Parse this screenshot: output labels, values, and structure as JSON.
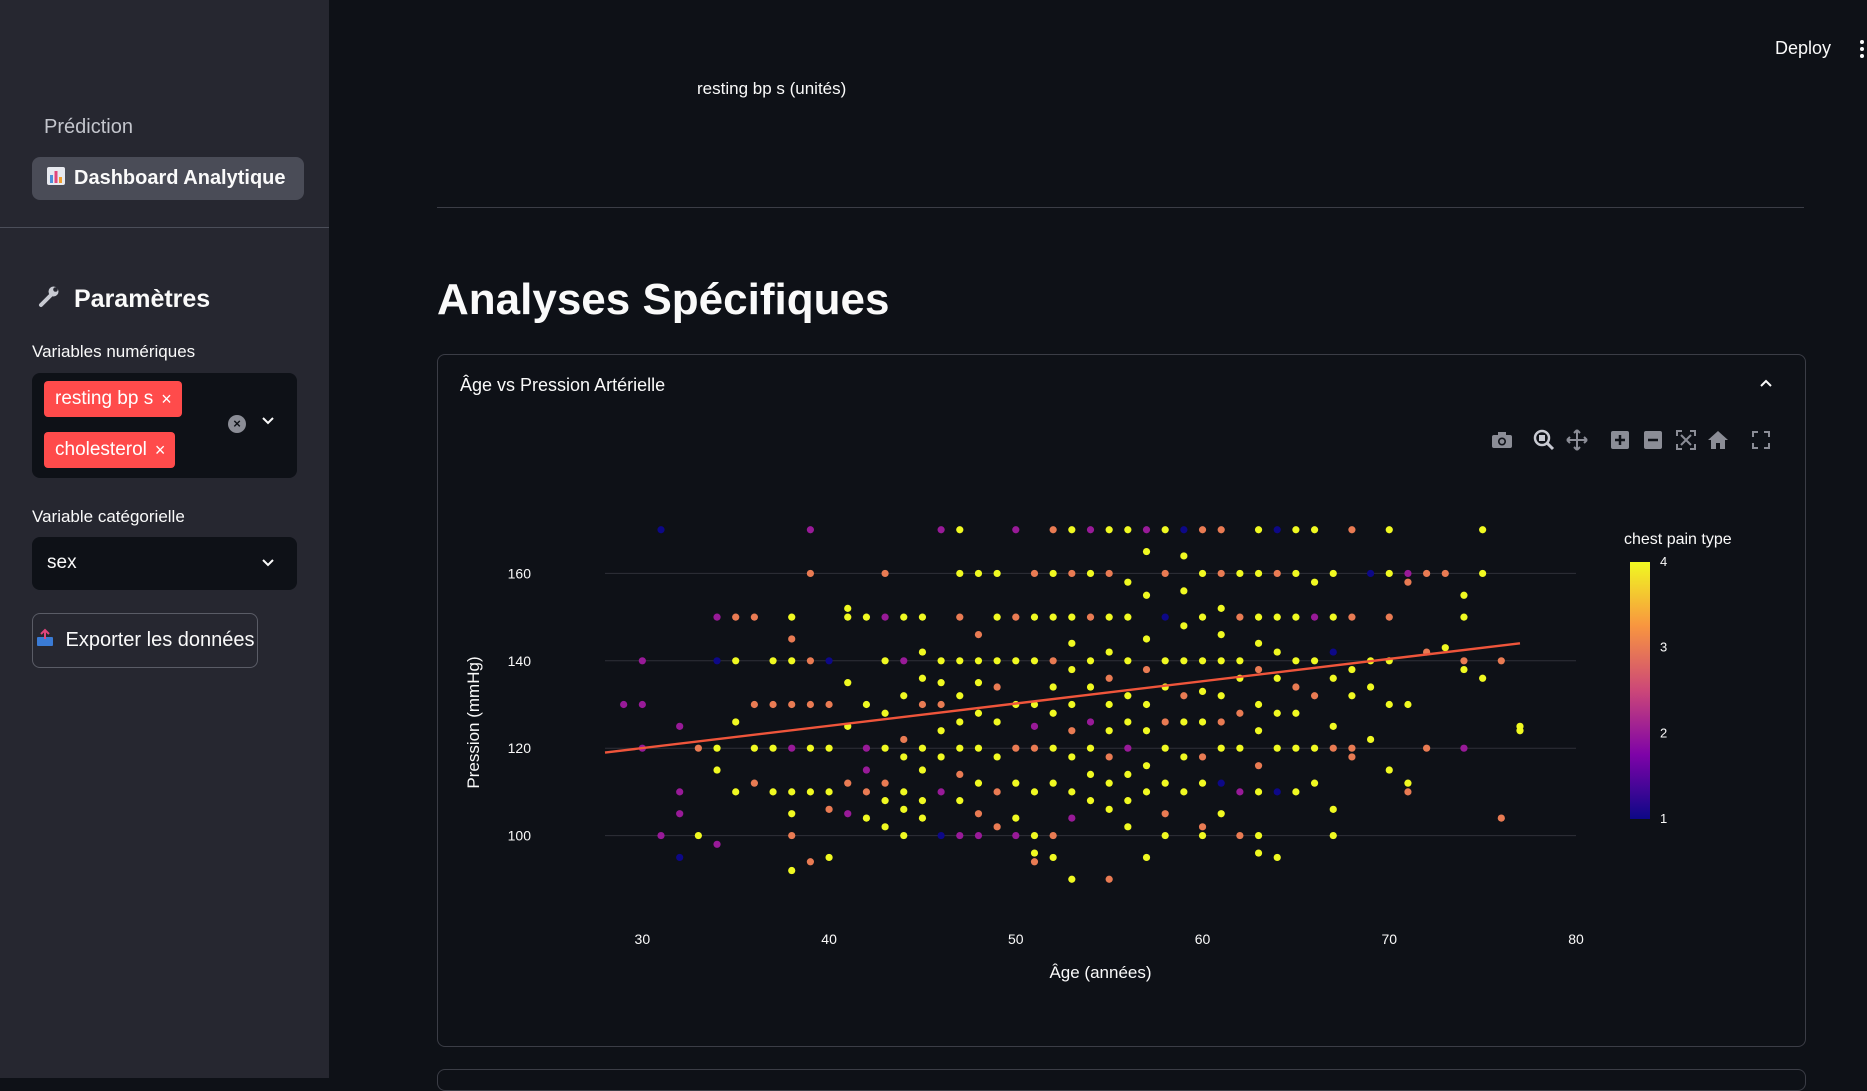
{
  "sidebar": {
    "nav_header": "Prédiction",
    "nav_active": "Dashboard Analytique",
    "params_title": "Paramètres",
    "numeric_label": "Variables numériques",
    "numeric_tags": [
      "resting bp s",
      "cholesterol"
    ],
    "categorical_label": "Variable catégorielle",
    "categorical_value": "sex",
    "export_label": "Exporter les données"
  },
  "header": {
    "deploy_label": "Deploy"
  },
  "metric": {
    "label": "resting bp s (unités)"
  },
  "section": {
    "title": "Analyses Spécifiques"
  },
  "expander": {
    "title": "Âge vs Pression Artérielle"
  },
  "modebar_icons": [
    "camera-icon",
    "zoom-icon",
    "pan-icon",
    "zoom-in-icon",
    "zoom-out-icon",
    "autoscale-icon",
    "reset-axes-icon",
    "fullscreen-icon"
  ],
  "chart_data": {
    "type": "scatter",
    "xlabel": "Âge (années)",
    "ylabel": "Pression (mmHg)",
    "xlim": [
      28,
      80
    ],
    "ylim": [
      88,
      172
    ],
    "xticks": [
      30,
      40,
      50,
      60,
      70,
      80
    ],
    "yticks": [
      100,
      120,
      140,
      160
    ],
    "grid": true,
    "colorbar": {
      "title": "chest pain type",
      "ticks": [
        1,
        2,
        3,
        4
      ],
      "range": [
        1,
        4
      ],
      "colors": [
        "#0d0887",
        "#7e03a8",
        "#cc4778",
        "#f89540",
        "#f0f921"
      ]
    },
    "trendline": {
      "color": "#ef553b",
      "points": [
        [
          28,
          119
        ],
        [
          77,
          144
        ]
      ]
    },
    "points": [
      [
        29,
        130,
        2
      ],
      [
        30,
        130,
        2
      ],
      [
        30,
        140,
        2
      ],
      [
        30,
        120,
        2
      ],
      [
        31,
        170,
        1
      ],
      [
        32,
        125,
        2
      ],
      [
        32,
        110,
        2
      ],
      [
        32,
        105,
        2
      ],
      [
        32,
        95,
        1
      ],
      [
        31,
        100,
        2
      ],
      [
        33,
        100,
        4
      ],
      [
        33,
        120,
        3
      ],
      [
        34,
        150,
        2
      ],
      [
        34,
        140,
        1
      ],
      [
        34,
        120,
        4
      ],
      [
        34,
        115,
        4
      ],
      [
        34,
        98,
        2
      ],
      [
        35,
        150,
        3
      ],
      [
        35,
        110,
        4
      ],
      [
        35,
        126,
        4
      ],
      [
        35,
        140,
        4
      ],
      [
        36,
        150,
        3
      ],
      [
        36,
        130,
        3
      ],
      [
        36,
        120,
        4
      ],
      [
        36,
        112,
        3
      ],
      [
        37,
        140,
        4
      ],
      [
        37,
        130,
        3
      ],
      [
        37,
        120,
        4
      ],
      [
        37,
        110,
        4
      ],
      [
        38,
        150,
        4
      ],
      [
        38,
        145,
        3
      ],
      [
        38,
        140,
        4
      ],
      [
        38,
        130,
        3
      ],
      [
        38,
        120,
        2
      ],
      [
        38,
        110,
        4
      ],
      [
        38,
        105,
        4
      ],
      [
        38,
        100,
        3
      ],
      [
        38,
        92,
        4
      ],
      [
        39,
        170,
        2
      ],
      [
        39,
        160,
        3
      ],
      [
        39,
        140,
        3
      ],
      [
        39,
        130,
        3
      ],
      [
        39,
        120,
        4
      ],
      [
        39,
        110,
        4
      ],
      [
        39,
        94,
        3
      ],
      [
        40,
        140,
        1
      ],
      [
        40,
        130,
        3
      ],
      [
        40,
        120,
        4
      ],
      [
        40,
        110,
        4
      ],
      [
        40,
        106,
        3
      ],
      [
        40,
        95,
        4
      ],
      [
        41,
        150,
        4
      ],
      [
        41,
        152,
        4
      ],
      [
        41,
        135,
        4
      ],
      [
        41,
        125,
        4
      ],
      [
        41,
        112,
        3
      ],
      [
        41,
        105,
        2
      ],
      [
        42,
        150,
        4
      ],
      [
        42,
        130,
        4
      ],
      [
        42,
        120,
        2
      ],
      [
        42,
        110,
        3
      ],
      [
        42,
        104,
        4
      ],
      [
        42,
        115,
        2
      ],
      [
        43,
        160,
        3
      ],
      [
        43,
        150,
        2
      ],
      [
        43,
        140,
        4
      ],
      [
        43,
        128,
        4
      ],
      [
        43,
        120,
        4
      ],
      [
        43,
        112,
        3
      ],
      [
        43,
        108,
        4
      ],
      [
        43,
        102,
        4
      ],
      [
        44,
        150,
        4
      ],
      [
        44,
        140,
        2
      ],
      [
        44,
        132,
        4
      ],
      [
        44,
        122,
        3
      ],
      [
        44,
        118,
        4
      ],
      [
        44,
        110,
        4
      ],
      [
        44,
        106,
        4
      ],
      [
        44,
        100,
        4
      ],
      [
        45,
        150,
        4
      ],
      [
        45,
        142,
        4
      ],
      [
        45,
        136,
        4
      ],
      [
        45,
        130,
        3
      ],
      [
        45,
        120,
        4
      ],
      [
        45,
        115,
        4
      ],
      [
        45,
        108,
        4
      ],
      [
        45,
        104,
        4
      ],
      [
        46,
        170,
        2
      ],
      [
        46,
        140,
        4
      ],
      [
        46,
        135,
        4
      ],
      [
        46,
        130,
        3
      ],
      [
        46,
        124,
        4
      ],
      [
        46,
        118,
        4
      ],
      [
        46,
        110,
        2
      ],
      [
        46,
        100,
        1
      ],
      [
        47,
        170,
        4
      ],
      [
        47,
        160,
        4
      ],
      [
        47,
        150,
        3
      ],
      [
        47,
        140,
        4
      ],
      [
        47,
        132,
        4
      ],
      [
        47,
        126,
        4
      ],
      [
        47,
        120,
        4
      ],
      [
        47,
        114,
        3
      ],
      [
        47,
        108,
        4
      ],
      [
        47,
        100,
        2
      ],
      [
        48,
        160,
        4
      ],
      [
        48,
        146,
        3
      ],
      [
        48,
        140,
        4
      ],
      [
        48,
        135,
        4
      ],
      [
        48,
        128,
        4
      ],
      [
        48,
        120,
        4
      ],
      [
        48,
        112,
        4
      ],
      [
        48,
        105,
        3
      ],
      [
        48,
        100,
        2
      ],
      [
        49,
        160,
        4
      ],
      [
        49,
        150,
        4
      ],
      [
        49,
        140,
        4
      ],
      [
        49,
        134,
        3
      ],
      [
        49,
        126,
        4
      ],
      [
        49,
        118,
        4
      ],
      [
        49,
        110,
        3
      ],
      [
        49,
        102,
        3
      ],
      [
        50,
        170,
        2
      ],
      [
        50,
        150,
        3
      ],
      [
        50,
        140,
        4
      ],
      [
        50,
        130,
        4
      ],
      [
        50,
        120,
        3
      ],
      [
        50,
        112,
        4
      ],
      [
        50,
        104,
        4
      ],
      [
        50,
        100,
        2
      ],
      [
        51,
        160,
        3
      ],
      [
        51,
        150,
        4
      ],
      [
        51,
        140,
        4
      ],
      [
        51,
        130,
        4
      ],
      [
        51,
        125,
        2
      ],
      [
        51,
        120,
        3
      ],
      [
        51,
        110,
        4
      ],
      [
        51,
        100,
        4
      ],
      [
        51,
        94,
        3
      ],
      [
        51,
        96,
        4
      ],
      [
        52,
        170,
        3
      ],
      [
        52,
        160,
        4
      ],
      [
        52,
        150,
        4
      ],
      [
        52,
        140,
        3
      ],
      [
        52,
        134,
        4
      ],
      [
        52,
        128,
        4
      ],
      [
        52,
        120,
        4
      ],
      [
        52,
        112,
        4
      ],
      [
        52,
        100,
        3
      ],
      [
        52,
        95,
        4
      ],
      [
        53,
        170,
        4
      ],
      [
        53,
        160,
        3
      ],
      [
        53,
        150,
        4
      ],
      [
        53,
        144,
        4
      ],
      [
        53,
        138,
        4
      ],
      [
        53,
        130,
        4
      ],
      [
        53,
        124,
        3
      ],
      [
        53,
        118,
        4
      ],
      [
        53,
        110,
        4
      ],
      [
        53,
        104,
        2
      ],
      [
        53,
        90,
        4
      ],
      [
        54,
        170,
        2
      ],
      [
        54,
        160,
        4
      ],
      [
        54,
        150,
        3
      ],
      [
        54,
        140,
        4
      ],
      [
        54,
        134,
        4
      ],
      [
        54,
        126,
        2
      ],
      [
        54,
        120,
        4
      ],
      [
        54,
        114,
        4
      ],
      [
        54,
        108,
        4
      ],
      [
        55,
        170,
        4
      ],
      [
        55,
        160,
        3
      ],
      [
        55,
        150,
        4
      ],
      [
        55,
        142,
        4
      ],
      [
        55,
        136,
        3
      ],
      [
        55,
        130,
        4
      ],
      [
        55,
        124,
        4
      ],
      [
        55,
        118,
        3
      ],
      [
        55,
        112,
        4
      ],
      [
        55,
        106,
        4
      ],
      [
        55,
        90,
        3
      ],
      [
        56,
        170,
        4
      ],
      [
        56,
        158,
        4
      ],
      [
        56,
        150,
        4
      ],
      [
        56,
        140,
        4
      ],
      [
        56,
        132,
        4
      ],
      [
        56,
        126,
        4
      ],
      [
        56,
        120,
        2
      ],
      [
        56,
        114,
        4
      ],
      [
        56,
        108,
        4
      ],
      [
        56,
        102,
        4
      ],
      [
        57,
        170,
        2
      ],
      [
        57,
        165,
        4
      ],
      [
        57,
        155,
        4
      ],
      [
        57,
        145,
        4
      ],
      [
        57,
        138,
        3
      ],
      [
        57,
        130,
        4
      ],
      [
        57,
        124,
        4
      ],
      [
        57,
        116,
        4
      ],
      [
        57,
        110,
        4
      ],
      [
        57,
        95,
        4
      ],
      [
        58,
        170,
        4
      ],
      [
        58,
        160,
        3
      ],
      [
        58,
        150,
        1
      ],
      [
        58,
        140,
        4
      ],
      [
        58,
        134,
        4
      ],
      [
        58,
        126,
        3
      ],
      [
        58,
        120,
        4
      ],
      [
        58,
        112,
        4
      ],
      [
        58,
        105,
        3
      ],
      [
        58,
        100,
        4
      ],
      [
        59,
        170,
        1
      ],
      [
        59,
        164,
        4
      ],
      [
        59,
        156,
        4
      ],
      [
        59,
        148,
        4
      ],
      [
        59,
        140,
        4
      ],
      [
        59,
        132,
        3
      ],
      [
        59,
        126,
        4
      ],
      [
        59,
        118,
        4
      ],
      [
        59,
        110,
        4
      ],
      [
        60,
        170,
        3
      ],
      [
        60,
        160,
        4
      ],
      [
        60,
        150,
        4
      ],
      [
        60,
        140,
        4
      ],
      [
        60,
        133,
        4
      ],
      [
        60,
        126,
        4
      ],
      [
        60,
        118,
        3
      ],
      [
        60,
        112,
        4
      ],
      [
        60,
        102,
        3
      ],
      [
        60,
        100,
        4
      ],
      [
        61,
        170,
        3
      ],
      [
        61,
        160,
        3
      ],
      [
        61,
        152,
        4
      ],
      [
        61,
        146,
        4
      ],
      [
        61,
        140,
        4
      ],
      [
        61,
        132,
        4
      ],
      [
        61,
        126,
        3
      ],
      [
        61,
        120,
        4
      ],
      [
        61,
        112,
        1
      ],
      [
        61,
        105,
        4
      ],
      [
        62,
        160,
        4
      ],
      [
        62,
        150,
        3
      ],
      [
        62,
        140,
        4
      ],
      [
        62,
        136,
        4
      ],
      [
        62,
        128,
        3
      ],
      [
        62,
        120,
        4
      ],
      [
        62,
        110,
        2
      ],
      [
        62,
        100,
        3
      ],
      [
        63,
        170,
        4
      ],
      [
        63,
        160,
        4
      ],
      [
        63,
        150,
        4
      ],
      [
        63,
        144,
        4
      ],
      [
        63,
        138,
        3
      ],
      [
        63,
        130,
        4
      ],
      [
        63,
        124,
        4
      ],
      [
        63,
        116,
        3
      ],
      [
        63,
        110,
        4
      ],
      [
        63,
        100,
        4
      ],
      [
        63,
        96,
        4
      ],
      [
        64,
        170,
        1
      ],
      [
        64,
        160,
        3
      ],
      [
        64,
        150,
        4
      ],
      [
        64,
        142,
        4
      ],
      [
        64,
        136,
        4
      ],
      [
        64,
        128,
        4
      ],
      [
        64,
        120,
        4
      ],
      [
        64,
        110,
        1
      ],
      [
        64,
        95,
        4
      ],
      [
        65,
        170,
        4
      ],
      [
        65,
        160,
        4
      ],
      [
        65,
        150,
        4
      ],
      [
        65,
        140,
        4
      ],
      [
        65,
        134,
        3
      ],
      [
        65,
        128,
        4
      ],
      [
        65,
        120,
        4
      ],
      [
        65,
        110,
        4
      ],
      [
        66,
        170,
        4
      ],
      [
        66,
        158,
        4
      ],
      [
        66,
        150,
        2
      ],
      [
        66,
        140,
        4
      ],
      [
        66,
        132,
        3
      ],
      [
        66,
        120,
        4
      ],
      [
        66,
        112,
        4
      ],
      [
        67,
        160,
        4
      ],
      [
        67,
        150,
        4
      ],
      [
        67,
        142,
        1
      ],
      [
        67,
        136,
        4
      ],
      [
        67,
        125,
        4
      ],
      [
        67,
        120,
        3
      ],
      [
        67,
        106,
        4
      ],
      [
        67,
        100,
        4
      ],
      [
        68,
        170,
        3
      ],
      [
        68,
        150,
        3
      ],
      [
        68,
        138,
        4
      ],
      [
        68,
        132,
        4
      ],
      [
        68,
        120,
        3
      ],
      [
        68,
        118,
        3
      ],
      [
        69,
        160,
        1
      ],
      [
        69,
        140,
        4
      ],
      [
        69,
        134,
        4
      ],
      [
        69,
        122,
        4
      ],
      [
        70,
        170,
        4
      ],
      [
        70,
        160,
        4
      ],
      [
        70,
        150,
        3
      ],
      [
        70,
        140,
        4
      ],
      [
        70,
        130,
        4
      ],
      [
        70,
        115,
        4
      ],
      [
        71,
        160,
        2
      ],
      [
        71,
        158,
        3
      ],
      [
        71,
        130,
        4
      ],
      [
        71,
        112,
        4
      ],
      [
        71,
        110,
        3
      ],
      [
        72,
        160,
        3
      ],
      [
        72,
        142,
        3
      ],
      [
        72,
        120,
        3
      ],
      [
        73,
        160,
        3
      ],
      [
        73,
        143,
        4
      ],
      [
        74,
        155,
        4
      ],
      [
        74,
        150,
        4
      ],
      [
        74,
        140,
        3
      ],
      [
        74,
        138,
        4
      ],
      [
        74,
        120,
        2
      ],
      [
        75,
        170,
        4
      ],
      [
        75,
        160,
        4
      ],
      [
        75,
        136,
        4
      ],
      [
        76,
        140,
        3
      ],
      [
        76,
        104,
        3
      ],
      [
        77,
        124,
        4
      ],
      [
        77,
        125,
        4
      ]
    ]
  }
}
